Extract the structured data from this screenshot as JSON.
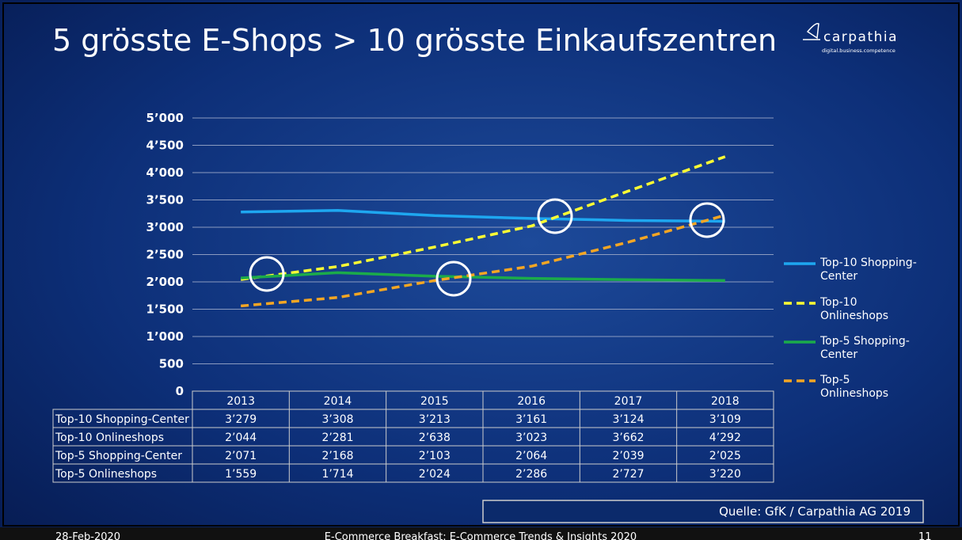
{
  "title": "5 grösste E-Shops  > 10 grösste Einkaufszentren",
  "logo": {
    "name": "carpathia",
    "tagline": "digital.business.competence"
  },
  "source": "Quelle: GfK / Carpathia AG  2019",
  "footer": {
    "date": "28-Feb-2020",
    "event": "E-Commerce Breakfast: E-Commerce Trends & Insights 2020",
    "page": "11"
  },
  "chart_data": {
    "type": "line",
    "categories": [
      "2013",
      "2014",
      "2015",
      "2016",
      "2017",
      "2018"
    ],
    "ylim": [
      0,
      5000
    ],
    "yticks": [
      {
        "value": 0,
        "label": "0"
      },
      {
        "value": 500,
        "label": "500"
      },
      {
        "value": 1000,
        "label": "1’000"
      },
      {
        "value": 1500,
        "label": "1’500"
      },
      {
        "value": 2000,
        "label": "2’000"
      },
      {
        "value": 2500,
        "label": "2’500"
      },
      {
        "value": 3000,
        "label": "3’000"
      },
      {
        "value": 3500,
        "label": "3’500"
      },
      {
        "value": 4000,
        "label": "4’000"
      },
      {
        "value": 4500,
        "label": "4’500"
      },
      {
        "value": 5000,
        "label": "5’000"
      }
    ],
    "grid": true,
    "legend": "right",
    "series": [
      {
        "name": "Top-10 Shopping-Center",
        "color": "#1ea7f0",
        "style": "solid",
        "values": [
          3279,
          3308,
          3213,
          3161,
          3124,
          3109
        ],
        "value_labels": [
          "3’279",
          "3’308",
          "3’213",
          "3’161",
          "3’124",
          "3’109"
        ]
      },
      {
        "name": "Top-10 Onlineshops",
        "color": "#ffff33",
        "style": "dashed",
        "values": [
          2044,
          2281,
          2638,
          3023,
          3662,
          4292
        ],
        "value_labels": [
          "2’044",
          "2’281",
          "2’638",
          "3’023",
          "3’662",
          "4’292"
        ]
      },
      {
        "name": "Top-5 Shopping-Center",
        "color": "#1bab4a",
        "style": "solid",
        "values": [
          2071,
          2168,
          2103,
          2064,
          2039,
          2025
        ],
        "value_labels": [
          "2’071",
          "2’168",
          "2’103",
          "2’064",
          "2’039",
          "2’025"
        ]
      },
      {
        "name": "Top-5 Onlineshops",
        "color": "#f5a623",
        "style": "dashed",
        "values": [
          1559,
          1714,
          2024,
          2286,
          2727,
          3220
        ],
        "value_labels": [
          "1’559",
          "1’714",
          "2’024",
          "2’286",
          "2’727",
          "3’220"
        ]
      }
    ]
  }
}
